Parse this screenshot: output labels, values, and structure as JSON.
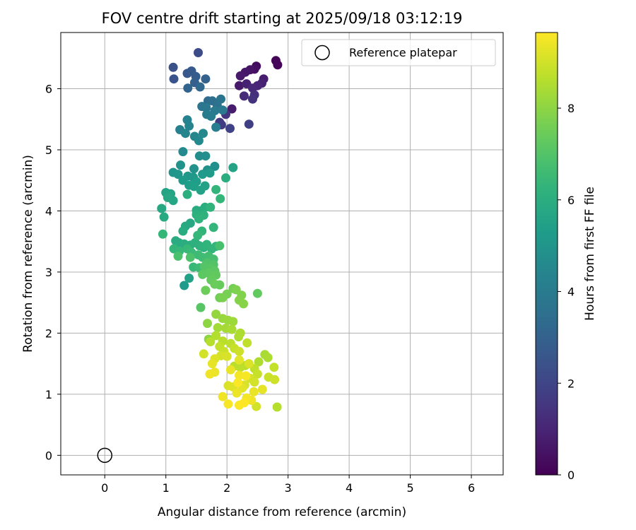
{
  "chart_data": {
    "type": "scatter",
    "title": "FOV centre drift starting at 2025/09/18 03:12:19",
    "xlabel": "Angular distance from reference (arcmin)",
    "ylabel": "Rotation from reference (arcmin)",
    "xlim": [
      -0.72,
      6.52
    ],
    "ylim": [
      -0.32,
      6.92
    ],
    "xticks": [
      0,
      1,
      2,
      3,
      4,
      5,
      6
    ],
    "yticks": [
      0,
      1,
      2,
      3,
      4,
      5,
      6
    ],
    "grid": true,
    "legend": {
      "position": "top-right",
      "entries": [
        "Reference platepar"
      ]
    },
    "reference": {
      "label": "Reference platepar",
      "x": 0,
      "y": 0
    },
    "colorbar": {
      "label": "Hours from first FF file",
      "colormap": "viridis",
      "range": [
        0,
        9.65
      ],
      "ticks": [
        0,
        2,
        4,
        6,
        8
      ]
    },
    "points_format": [
      "x",
      "y",
      "hours"
    ],
    "points": [
      [
        2.8,
        6.46,
        0.1
      ],
      [
        2.83,
        6.39,
        0.15
      ],
      [
        2.48,
        6.37,
        0.3
      ],
      [
        2.45,
        6.32,
        0.4
      ],
      [
        2.38,
        6.31,
        0.5
      ],
      [
        2.3,
        6.27,
        0.6
      ],
      [
        2.22,
        6.21,
        0.7
      ],
      [
        2.6,
        6.16,
        0.8
      ],
      [
        2.57,
        6.09,
        0.9
      ],
      [
        2.5,
        6.05,
        1.0
      ],
      [
        2.42,
        6.01,
        1.1
      ],
      [
        2.2,
        6.05,
        0.65
      ],
      [
        2.32,
        6.08,
        0.9
      ],
      [
        2.28,
        5.88,
        1.2
      ],
      [
        2.45,
        5.9,
        1.3
      ],
      [
        2.42,
        5.83,
        1.4
      ],
      [
        2.08,
        5.67,
        0.75
      ],
      [
        2.36,
        5.42,
        1.8
      ],
      [
        2.05,
        5.35,
        1.9
      ],
      [
        1.53,
        6.59,
        2.2
      ],
      [
        1.12,
        6.35,
        2.4
      ],
      [
        1.13,
        6.16,
        2.5
      ],
      [
        1.35,
        6.25,
        2.6
      ],
      [
        1.42,
        6.29,
        2.7
      ],
      [
        1.49,
        6.2,
        2.8
      ],
      [
        1.47,
        6.1,
        2.9
      ],
      [
        1.65,
        6.16,
        3.0
      ],
      [
        1.36,
        6.01,
        3.1
      ],
      [
        1.56,
        6.03,
        3.2
      ],
      [
        1.69,
        5.8,
        3.4
      ],
      [
        1.76,
        5.8,
        3.5
      ],
      [
        1.84,
        5.73,
        3.6
      ],
      [
        1.9,
        5.83,
        3.7
      ],
      [
        1.59,
        5.71,
        3.8
      ],
      [
        1.66,
        5.69,
        3.85
      ],
      [
        1.93,
        5.65,
        3.9
      ],
      [
        1.8,
        5.64,
        3.95
      ],
      [
        1.67,
        5.58,
        4.0
      ],
      [
        1.74,
        5.55,
        4.05
      ],
      [
        1.98,
        5.58,
        1.5
      ],
      [
        1.88,
        5.45,
        1.6
      ],
      [
        1.91,
        5.41,
        1.7
      ],
      [
        1.82,
        5.37,
        4.1
      ],
      [
        1.23,
        5.33,
        4.2
      ],
      [
        1.35,
        5.49,
        4.3
      ],
      [
        1.38,
        5.39,
        4.35
      ],
      [
        1.32,
        5.27,
        4.4
      ],
      [
        1.47,
        5.22,
        4.45
      ],
      [
        1.61,
        5.27,
        4.5
      ],
      [
        1.54,
        5.15,
        4.55
      ],
      [
        1.28,
        4.97,
        4.6
      ],
      [
        1.55,
        4.9,
        4.7
      ],
      [
        1.65,
        4.9,
        4.75
      ],
      [
        1.8,
        4.73,
        4.8
      ],
      [
        1.68,
        4.67,
        4.85
      ],
      [
        1.46,
        4.69,
        4.9
      ],
      [
        1.24,
        4.75,
        4.95
      ],
      [
        1.12,
        4.63,
        5.0
      ],
      [
        1.2,
        4.6,
        5.05
      ],
      [
        1.36,
        4.57,
        5.1
      ],
      [
        1.45,
        4.55,
        5.15
      ],
      [
        1.6,
        4.6,
        5.2
      ],
      [
        1.72,
        4.62,
        5.25
      ],
      [
        1.28,
        4.5,
        5.3
      ],
      [
        1.5,
        4.48,
        5.35
      ],
      [
        1.38,
        4.42,
        5.4
      ],
      [
        1.46,
        4.4,
        5.45
      ],
      [
        1.57,
        4.34,
        5.5
      ],
      [
        1.64,
        4.41,
        5.55
      ],
      [
        2.1,
        4.71,
        5.6
      ],
      [
        1.98,
        4.54,
        6.0
      ],
      [
        1.0,
        4.3,
        5.6
      ],
      [
        1.08,
        4.28,
        5.65
      ],
      [
        1.12,
        4.17,
        5.7
      ],
      [
        1.03,
        4.22,
        5.75
      ],
      [
        1.35,
        4.27,
        6.05
      ],
      [
        1.82,
        4.35,
        6.3
      ],
      [
        1.89,
        4.2,
        6.4
      ],
      [
        0.93,
        4.04,
        5.8
      ],
      [
        0.97,
        3.9,
        5.85
      ],
      [
        1.5,
        4.01,
        5.9
      ],
      [
        1.57,
        4.0,
        5.95
      ],
      [
        1.64,
        4.06,
        6.0
      ],
      [
        1.5,
        3.94,
        6.1
      ],
      [
        1.62,
        3.93,
        6.15
      ],
      [
        1.54,
        3.87,
        6.2
      ],
      [
        1.73,
        4.06,
        6.25
      ],
      [
        1.4,
        3.8,
        5.8
      ],
      [
        1.32,
        3.75,
        5.85
      ],
      [
        1.28,
        3.67,
        5.9
      ],
      [
        1.78,
        3.73,
        6.3
      ],
      [
        1.59,
        3.67,
        6.35
      ],
      [
        0.95,
        3.62,
        6.4
      ],
      [
        1.52,
        3.6,
        6.45
      ],
      [
        1.16,
        3.51,
        5.9
      ],
      [
        1.21,
        3.48,
        5.95
      ],
      [
        1.3,
        3.46,
        6.0
      ],
      [
        1.4,
        3.44,
        6.05
      ],
      [
        1.48,
        3.48,
        6.1
      ],
      [
        1.55,
        3.43,
        6.15
      ],
      [
        1.62,
        3.4,
        6.2
      ],
      [
        1.67,
        3.45,
        6.25
      ],
      [
        1.75,
        3.38,
        6.3
      ],
      [
        1.82,
        3.42,
        6.35
      ],
      [
        1.13,
        3.38,
        6.4
      ],
      [
        1.22,
        3.34,
        6.45
      ],
      [
        1.35,
        3.38,
        6.5
      ],
      [
        1.42,
        3.32,
        6.55
      ],
      [
        1.53,
        3.28,
        6.6
      ],
      [
        1.6,
        3.24,
        6.65
      ],
      [
        1.7,
        3.26,
        6.7
      ],
      [
        1.78,
        3.21,
        6.75
      ],
      [
        1.88,
        3.43,
        6.8
      ],
      [
        1.2,
        3.26,
        6.85
      ],
      [
        1.4,
        3.24,
        6.9
      ],
      [
        1.67,
        3.15,
        6.95
      ],
      [
        1.78,
        3.12,
        7.0
      ],
      [
        1.45,
        3.08,
        6.5
      ],
      [
        1.55,
        3.07,
        6.6
      ],
      [
        1.63,
        3.09,
        7.05
      ],
      [
        1.73,
        3.05,
        7.1
      ],
      [
        1.8,
        3.02,
        7.15
      ],
      [
        1.6,
        2.96,
        7.2
      ],
      [
        1.7,
        2.98,
        7.25
      ],
      [
        1.38,
        2.9,
        5.5
      ],
      [
        1.3,
        2.78,
        5.2
      ],
      [
        1.82,
        2.95,
        7.3
      ],
      [
        1.74,
        2.87,
        7.35
      ],
      [
        1.88,
        2.79,
        7.4
      ],
      [
        1.8,
        2.8,
        7.45
      ],
      [
        1.65,
        2.7,
        7.5
      ],
      [
        2.1,
        2.73,
        7.6
      ],
      [
        2.0,
        2.64,
        7.65
      ],
      [
        1.93,
        2.58,
        7.7
      ],
      [
        2.15,
        2.71,
        7.75
      ],
      [
        2.24,
        2.62,
        7.8
      ],
      [
        2.2,
        2.54,
        7.85
      ],
      [
        2.27,
        2.48,
        7.9
      ],
      [
        2.5,
        2.65,
        7.3
      ],
      [
        1.57,
        2.42,
        7.1
      ],
      [
        1.88,
        2.58,
        7.55
      ],
      [
        1.82,
        2.31,
        8.1
      ],
      [
        1.93,
        2.24,
        8.15
      ],
      [
        2.02,
        2.21,
        8.2
      ],
      [
        2.1,
        2.19,
        8.25
      ],
      [
        1.68,
        2.16,
        8.0
      ],
      [
        1.85,
        2.09,
        8.3
      ],
      [
        1.98,
        2.08,
        8.35
      ],
      [
        2.08,
        2.06,
        8.4
      ],
      [
        2.22,
        2.0,
        8.45
      ],
      [
        2.19,
        1.94,
        8.5
      ],
      [
        1.7,
        1.9,
        8.0
      ],
      [
        1.82,
        1.96,
        8.55
      ],
      [
        1.73,
        1.86,
        8.6
      ],
      [
        1.93,
        1.87,
        8.65
      ],
      [
        2.06,
        1.83,
        8.7
      ],
      [
        2.33,
        1.84,
        8.75
      ],
      [
        1.88,
        1.78,
        8.8
      ],
      [
        2.12,
        1.75,
        8.85
      ],
      [
        1.95,
        1.7,
        8.9
      ],
      [
        2.2,
        1.7,
        8.95
      ],
      [
        1.62,
        1.66,
        9.0
      ],
      [
        1.9,
        1.63,
        9.05
      ],
      [
        2.0,
        1.62,
        9.1
      ],
      [
        2.62,
        1.65,
        8.4
      ],
      [
        2.67,
        1.6,
        8.45
      ],
      [
        2.52,
        1.53,
        8.5
      ],
      [
        2.36,
        1.5,
        9.15
      ],
      [
        1.8,
        1.58,
        9.2
      ],
      [
        2.2,
        1.56,
        9.25
      ],
      [
        2.3,
        1.47,
        8.6
      ],
      [
        1.76,
        1.5,
        9.3
      ],
      [
        2.12,
        1.46,
        8.65
      ],
      [
        2.22,
        1.44,
        8.7
      ],
      [
        2.45,
        1.42,
        8.75
      ],
      [
        2.77,
        1.44,
        8.8
      ],
      [
        2.06,
        1.4,
        9.35
      ],
      [
        1.8,
        1.36,
        9.4
      ],
      [
        1.72,
        1.33,
        9.45
      ],
      [
        2.5,
        1.33,
        8.85
      ],
      [
        2.68,
        1.28,
        8.9
      ],
      [
        2.78,
        1.24,
        8.95
      ],
      [
        2.2,
        1.31,
        9.5
      ],
      [
        2.31,
        1.3,
        9.55
      ],
      [
        2.38,
        1.26,
        9.0
      ],
      [
        2.45,
        1.2,
        9.05
      ],
      [
        2.18,
        1.19,
        9.6
      ],
      [
        2.29,
        1.15,
        9.1
      ],
      [
        2.02,
        1.14,
        9.15
      ],
      [
        2.1,
        1.12,
        9.2
      ],
      [
        2.25,
        1.1,
        9.25
      ],
      [
        2.58,
        1.08,
        9.3
      ],
      [
        2.44,
        1.04,
        9.35
      ],
      [
        2.16,
        1.02,
        9.4
      ],
      [
        1.93,
        0.96,
        9.45
      ],
      [
        2.32,
        0.94,
        9.5
      ],
      [
        2.02,
        0.84,
        9.55
      ],
      [
        2.2,
        0.82,
        9.6
      ],
      [
        2.28,
        0.86,
        9.65
      ],
      [
        2.82,
        0.79,
        8.6
      ],
      [
        2.48,
        0.8,
        9.0
      ],
      [
        2.4,
        0.9,
        9.45
      ]
    ]
  }
}
